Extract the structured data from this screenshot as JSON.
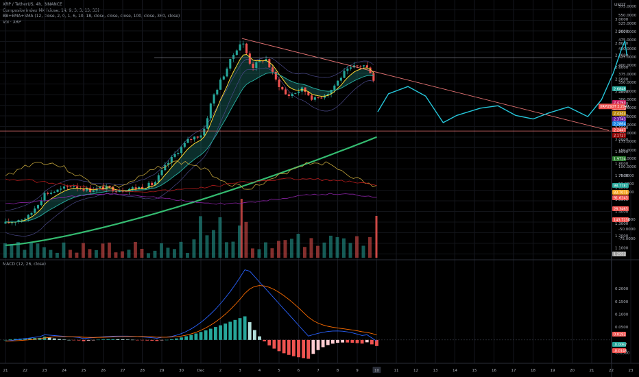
{
  "header": {
    "symbol_line": "XRP / TetherUS, 4h, BINANCE",
    "indicator_1": "Composite Index MK (close, 14, 9, 3, 3, 13, 33)",
    "indicator_2": "BB+EMA+SMA (12, close, 2, 0, 1, 6, 10, 18, close, close, close, 100, close, 360, close)",
    "indicator_3": "Vol · XRP",
    "currency": "USDT"
  },
  "macd_pane": {
    "legend": "MACD (12, 26, close)"
  },
  "chart_data": [
    {
      "type": "candlestick",
      "title": "XRP / TetherUS, 4h, BINANCE",
      "x_ticks": [
        "21",
        "22",
        "23",
        "24",
        "25",
        "26",
        "27",
        "28",
        "29",
        "30",
        "Dec",
        "2",
        "3",
        "4",
        "5",
        "6",
        "7",
        "8",
        "9",
        "10",
        "11",
        "12",
        "13",
        "14",
        "15",
        "16",
        "17",
        "18",
        "19",
        "20",
        "21",
        "22",
        "23"
      ],
      "y_ticks": [
        "3.0000",
        "2.9000",
        "2.8000",
        "2.7000",
        "2.6000",
        "2.5000",
        "2.4000",
        "2.3000",
        "2.2000",
        "2.1000",
        "2.0000",
        "1.9000",
        "1.8000",
        "1.7000",
        "1.6000",
        "1.5000",
        "1.4000",
        "1.3000",
        "1.2000",
        "1.1000"
      ],
      "y_ticks_oscillator": [
        "575.0000",
        "550.0000",
        "525.0000",
        "500.0000",
        "475.0000",
        "450.0000",
        "425.0000",
        "400.0000",
        "375.0000",
        "350.0000",
        "325.0000",
        "300.0000",
        "275.0000",
        "250.0000",
        "225.0000",
        "200.0000",
        "175.0000",
        "150.0000",
        "125.0000",
        "100.0000",
        "75.0000",
        "50.0000",
        "25.0000",
        "-25.0000",
        "-50.0000",
        "-75.0000"
      ],
      "ylim": [
        1.1,
        3.1
      ],
      "price_labels": [
        {
          "text": "2.6848",
          "color": "#26a69a"
        },
        {
          "text": "2.4793",
          "color": "#c2185b"
        },
        {
          "text": "2.4546",
          "color": "#e57373"
        },
        {
          "text": "2.4343",
          "color": "#b8860b"
        },
        {
          "text": "2.3743",
          "color": "#6a1b9a"
        },
        {
          "text": "2.2864",
          "color": "#1e88e5"
        },
        {
          "text": "2.2447",
          "color": "#ef5350"
        },
        {
          "text": "2.1727",
          "color": "#8e0000"
        },
        {
          "text": "1.9724",
          "color": "#2e7d32"
        },
        {
          "text": "1.2552",
          "color": "#9e9e9e"
        }
      ],
      "oscillator_labels": [
        {
          "text": "98.7787",
          "color": "#26a69a"
        },
        {
          "text": "83.7075",
          "color": "#f9a825"
        },
        {
          "text": "91.6243",
          "color": "#ef5350"
        },
        {
          "text": "28.3463",
          "color": "#ef5350"
        },
        {
          "text": "143.7238",
          "color": "#ef5350"
        }
      ],
      "current_price": {
        "text": "XRPUSDT 2.2747",
        "color": "#ef5350"
      },
      "price_range": [
        2.25,
        2.75
      ],
      "highlighted_date": "10"
    },
    {
      "type": "line",
      "title": "MACD (12, 26, close)",
      "y_ticks": [
        "0.2000",
        "0.1500",
        "0.1000",
        "0.0500",
        "-0.0500"
      ],
      "ylim": [
        -0.07,
        0.27
      ],
      "labels": [
        {
          "text": "0.0192",
          "color": "#ef5350"
        },
        {
          "text": "-0.0067",
          "color": "#26a69a"
        },
        {
          "text": "-0.0148",
          "color": "#ef5350"
        }
      ],
      "series": [
        {
          "name": "MACD",
          "color": "#2962ff"
        },
        {
          "name": "Signal",
          "color": "#ff6d00"
        }
      ]
    }
  ]
}
